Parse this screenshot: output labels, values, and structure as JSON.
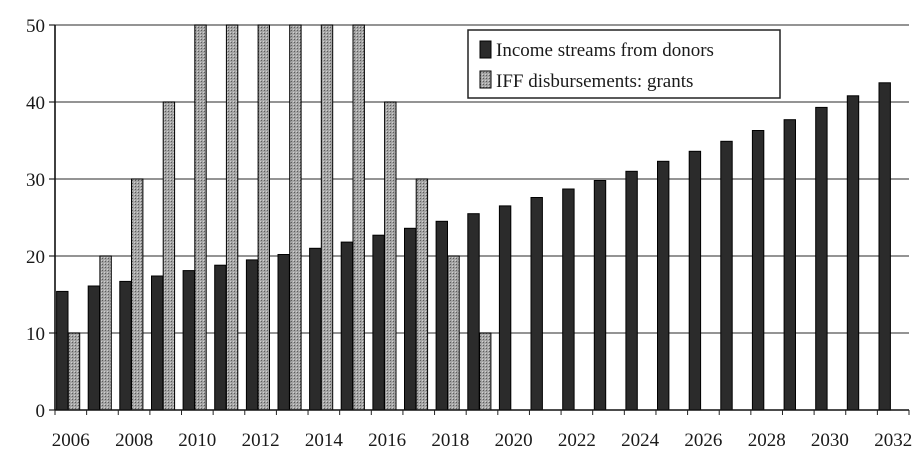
{
  "chart_data": {
    "type": "bar",
    "title": "",
    "xlabel": "",
    "ylabel": "",
    "ylim": [
      0,
      50
    ],
    "yticks": [
      0,
      10,
      20,
      30,
      40,
      50
    ],
    "xtick_labels": [
      "2006",
      "2008",
      "2010",
      "2012",
      "2014",
      "2016",
      "2018",
      "2020",
      "2022",
      "2024",
      "2026",
      "2028",
      "2030",
      "2032"
    ],
    "categories": [
      "2006",
      "2007",
      "2008",
      "2009",
      "2010",
      "2011",
      "2012",
      "2013",
      "2014",
      "2015",
      "2016",
      "2017",
      "2018",
      "2019",
      "2020",
      "2021",
      "2022",
      "2023",
      "2024",
      "2025",
      "2026",
      "2027",
      "2028",
      "2029",
      "2030",
      "2031",
      "2032"
    ],
    "grid": true,
    "legend_position": "top-right",
    "series": [
      {
        "name": "Income streams from donors",
        "color": "#2b2b2b",
        "values": [
          15.4,
          16.1,
          16.7,
          17.4,
          18.1,
          18.8,
          19.5,
          20.2,
          21.0,
          21.8,
          22.7,
          23.6,
          24.5,
          25.5,
          26.5,
          27.6,
          28.7,
          29.8,
          31.0,
          32.3,
          33.6,
          34.9,
          36.3,
          37.7,
          39.3,
          40.8,
          42.5
        ]
      },
      {
        "name": "IFF disbursements: grants",
        "color": "#9a9a9a",
        "values": [
          10,
          20,
          30,
          40,
          50,
          50,
          50,
          50,
          50,
          50,
          40,
          30,
          20,
          10,
          null,
          null,
          null,
          null,
          null,
          null,
          null,
          null,
          null,
          null,
          null,
          null,
          null
        ]
      }
    ]
  }
}
